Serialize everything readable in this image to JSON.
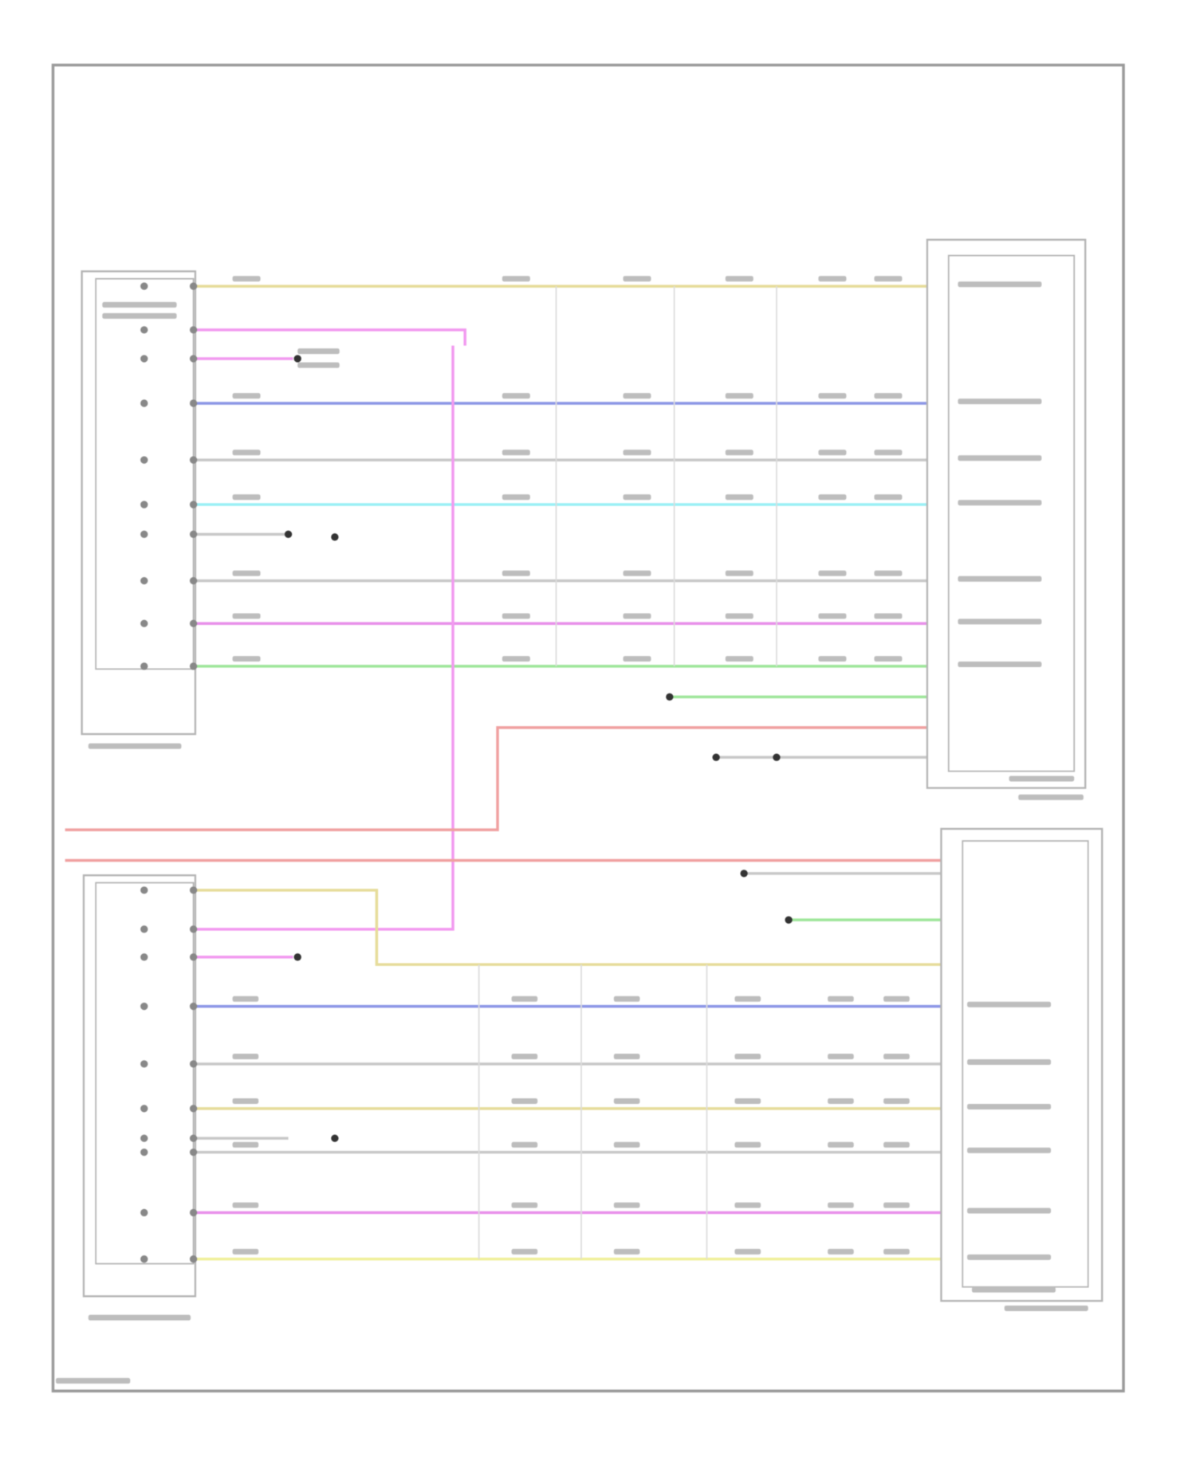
{
  "diagram": {
    "wire_colors": {
      "yellow": "#e6dc9a",
      "pink": "#f29af0",
      "blue": "#8c96e6",
      "gray": "#c8c8c8",
      "cyan": "#9af0f5",
      "magenta": "#e890ea",
      "green": "#9ee69a",
      "red": "#f0a0a0",
      "light_yellow": "#f0f09a"
    },
    "frame_color": "#9a9a9a",
    "component_color": "#b4b4b4"
  }
}
